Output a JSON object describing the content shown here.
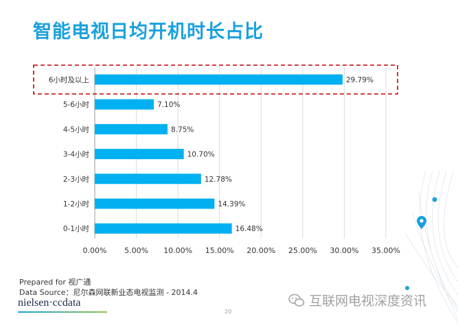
{
  "title": "智能电视日均开机时长占比",
  "footer": {
    "prepared": "Prepared for 视广通",
    "source": "Data Source：尼尔森网联新业态电视监测 - 2014.4",
    "logo_text": "nielsen·ccdata",
    "page_number": "20",
    "watermark": "互联网电视深度资讯"
  },
  "colors": {
    "bar": "#00b0f0",
    "title": "#1aa0dc",
    "highlight": "#c00000"
  },
  "chart_data": {
    "type": "bar",
    "orientation": "horizontal",
    "categories": [
      "6小时及以上",
      "5-6小时",
      "4-5小时",
      "3-4小时",
      "2-3小时",
      "1-2小时",
      "0-1小时"
    ],
    "values": [
      29.79,
      7.1,
      8.75,
      10.7,
      12.78,
      14.39,
      16.48
    ],
    "value_labels": [
      "29.79%",
      "7.10%",
      "8.75%",
      "10.70%",
      "12.78%",
      "14.39%",
      "16.48%"
    ],
    "x_ticks": [
      "0.00%",
      "5.00%",
      "10.00%",
      "15.00%",
      "20.00%",
      "25.00%",
      "30.00%",
      "35.00%"
    ],
    "xlim": [
      0,
      35
    ],
    "highlighted_category": "6小时及以上",
    "grid": true
  }
}
